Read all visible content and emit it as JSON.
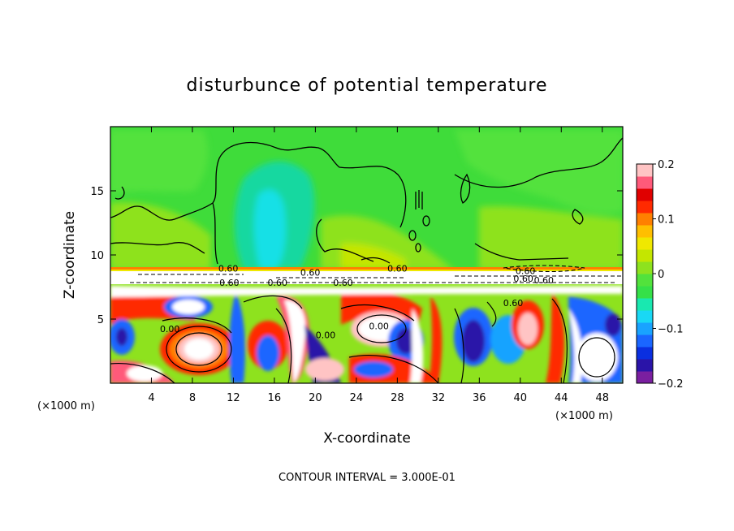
{
  "chart_data": {
    "type": "heatmap",
    "title": "disturbunce of potential temperature",
    "xlabel": "X-coordinate",
    "ylabel": "Z-coordinate",
    "x_unit": "(×1000 m)",
    "y_unit": "(×1000 m)",
    "footer": "CONTOUR INTERVAL = 3.000E-01",
    "xlim": [
      0,
      50
    ],
    "ylim": [
      0,
      20
    ],
    "x_ticks": [
      4,
      8,
      12,
      16,
      20,
      24,
      28,
      32,
      36,
      40,
      44,
      48
    ],
    "y_ticks": [
      5,
      10,
      15
    ],
    "colorbar": {
      "range": [
        -0.2,
        0.2
      ],
      "tick_values": [
        0.2,
        0.1,
        0,
        -0.1,
        -0.2
      ],
      "tick_labels": [
        "0.2",
        "0.1",
        "0",
        "−0.1",
        "−0.2"
      ],
      "colors": [
        "#7a1fa0",
        "#2a14a8",
        "#0a2fe0",
        "#1a66ff",
        "#19a3ff",
        "#19d8f5",
        "#19e8b0",
        "#35e048",
        "#52e23c",
        "#8ee21e",
        "#c4e600",
        "#f0e800",
        "#ffbf00",
        "#ff8000",
        "#ff2a00",
        "#e00000",
        "#ff5a7a",
        "#ffc4c4"
      ]
    },
    "contour_labels": [
      {
        "x": 21,
        "y": 3.5,
        "text": "0.00"
      },
      {
        "x": 40.5,
        "y": 8.5,
        "text": "0.60"
      },
      {
        "x": 11.5,
        "y": 8.7,
        "text": "0.60"
      },
      {
        "x": 11.6,
        "y": 7.6,
        "text": "0.60"
      },
      {
        "x": 16.3,
        "y": 7.6,
        "text": "0.60"
      },
      {
        "x": 19.5,
        "y": 8.4,
        "text": "0.60"
      },
      {
        "x": 22.7,
        "y": 7.6,
        "text": "0.60"
      },
      {
        "x": 28,
        "y": 8.7,
        "text": "0.60"
      },
      {
        "x": 40.3,
        "y": 7.9,
        "text": "0.60"
      },
      {
        "x": 39.3,
        "y": 6.0,
        "text": "0.60"
      },
      {
        "x": 42.3,
        "y": 7.8,
        "text": "0.60"
      },
      {
        "x": 5.8,
        "y": 4.0,
        "text": "0.00"
      },
      {
        "x": 26.2,
        "y": 4.2,
        "text": "0.00"
      }
    ]
  }
}
